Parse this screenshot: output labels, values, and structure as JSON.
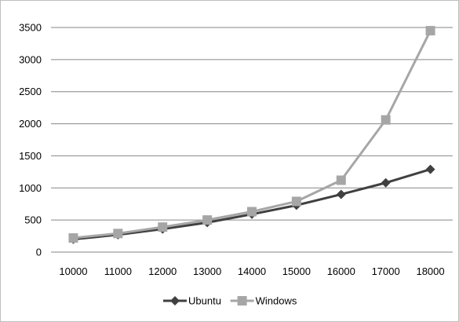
{
  "chart_data": {
    "type": "line",
    "title": "",
    "xlabel": "",
    "ylabel": "",
    "categories": [
      "10000",
      "11000",
      "12000",
      "13000",
      "14000",
      "15000",
      "16000",
      "17000",
      "18000"
    ],
    "ylim": [
      0,
      3500
    ],
    "yticks": [
      0,
      500,
      1000,
      1500,
      2000,
      2500,
      3000,
      3500
    ],
    "grid": "horizontal",
    "legend_position": "bottom",
    "series": [
      {
        "name": "Ubuntu",
        "marker": "diamond",
        "color": "#404040",
        "values": [
          200,
          270,
          360,
          460,
          590,
          730,
          900,
          1080,
          1290
        ]
      },
      {
        "name": "Windows",
        "marker": "square",
        "color": "#a6a6a6",
        "values": [
          220,
          290,
          390,
          500,
          630,
          790,
          1120,
          2060,
          3450
        ]
      }
    ]
  }
}
